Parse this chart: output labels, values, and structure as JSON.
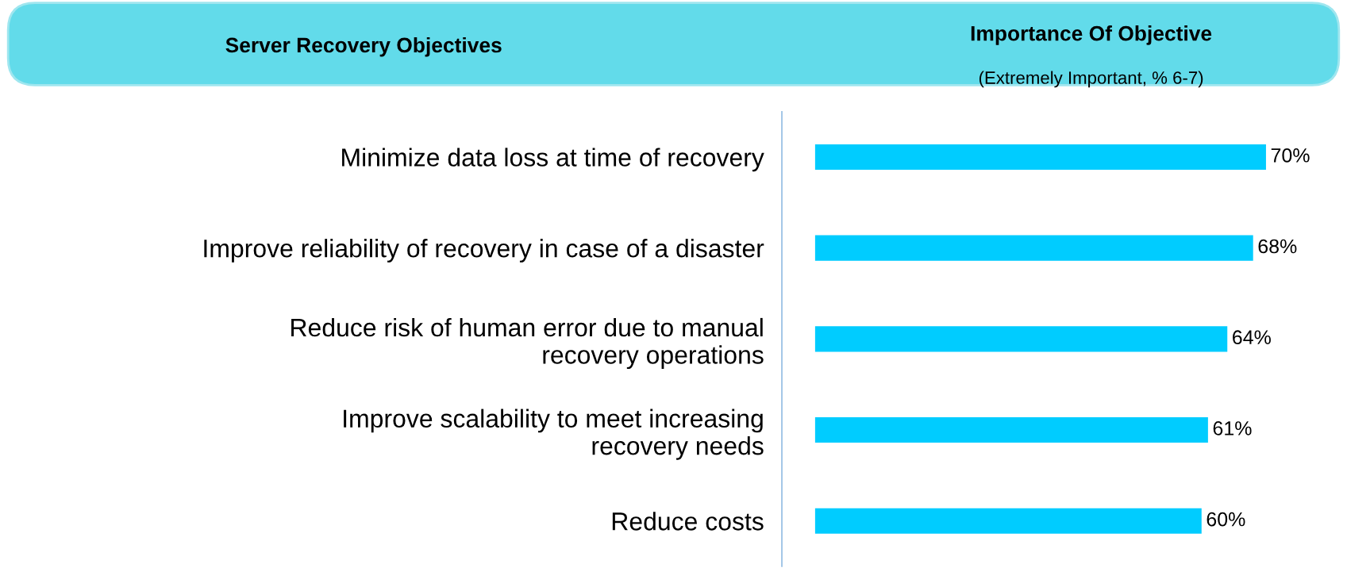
{
  "chart_data": {
    "type": "bar",
    "orientation": "horizontal",
    "title": "Importance Of Objective",
    "subtitle": "(Extremely Important, % 6-7)",
    "annotations": [
      "Server Recovery Objectives"
    ],
    "categories": [
      "Minimize data loss at time of recovery",
      "Improve reliability of recovery in case of a disaster",
      "Reduce risk of human error due to manual\nrecovery operations",
      "Improve scalability to meet increasing\nrecovery needs",
      "Reduce costs"
    ],
    "values": [
      70,
      68,
      64,
      61,
      60
    ],
    "value_labels": [
      "70%",
      "68%",
      "64%",
      "61%",
      "60%"
    ],
    "color": "#00ccff",
    "grid": false
  }
}
